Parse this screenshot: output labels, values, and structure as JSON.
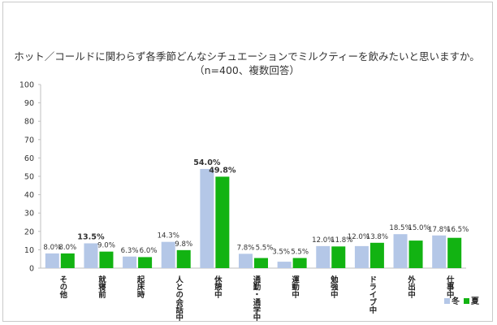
{
  "chart_data": {
    "type": "bar",
    "title": "ホット／コールドに関わらず各季節どんなシチュエーションでミルクティーを飲みたいと思いますか。",
    "subtitle": "（n=400、複数回答）",
    "categories": [
      "その他",
      "就寝前",
      "起床時",
      "人との会話中",
      "休憩中",
      "通勤・通学中",
      "運動中",
      "勉強中",
      "ドライブ中",
      "外出中",
      "仕事中"
    ],
    "series": [
      {
        "name": "冬",
        "color": "#b4c7e7",
        "values": [
          8.0,
          13.5,
          6.3,
          14.3,
          54.0,
          7.8,
          3.5,
          12.0,
          12.0,
          18.5,
          17.8
        ],
        "labels": [
          "8.0%",
          "13.5%",
          "6.3%",
          "14.3%",
          "54.0%",
          "7.8%",
          "3.5%",
          "12.0%",
          "12.0%",
          "18.5%",
          "17.8%"
        ]
      },
      {
        "name": "夏",
        "color": "#12b312",
        "values": [
          8.0,
          9.0,
          6.0,
          9.8,
          49.8,
          5.5,
          5.5,
          11.8,
          13.8,
          15.0,
          16.5
        ],
        "labels": [
          "8.0%",
          "9.0%",
          "6.0%",
          "9.8%",
          "49.8%",
          "5.5%",
          "5.5%",
          "11.8%",
          "13.8%",
          "15.0%",
          "16.5%"
        ]
      }
    ],
    "bold_labels": [
      "13.5%",
      "54.0%",
      "49.8%"
    ],
    "y_ticks": [
      "0",
      "10",
      "20",
      "30",
      "40",
      "50",
      "60",
      "70",
      "80",
      "90",
      "100"
    ],
    "ylim": [
      0,
      100
    ],
    "legend": "bottom-right",
    "grid": false
  }
}
